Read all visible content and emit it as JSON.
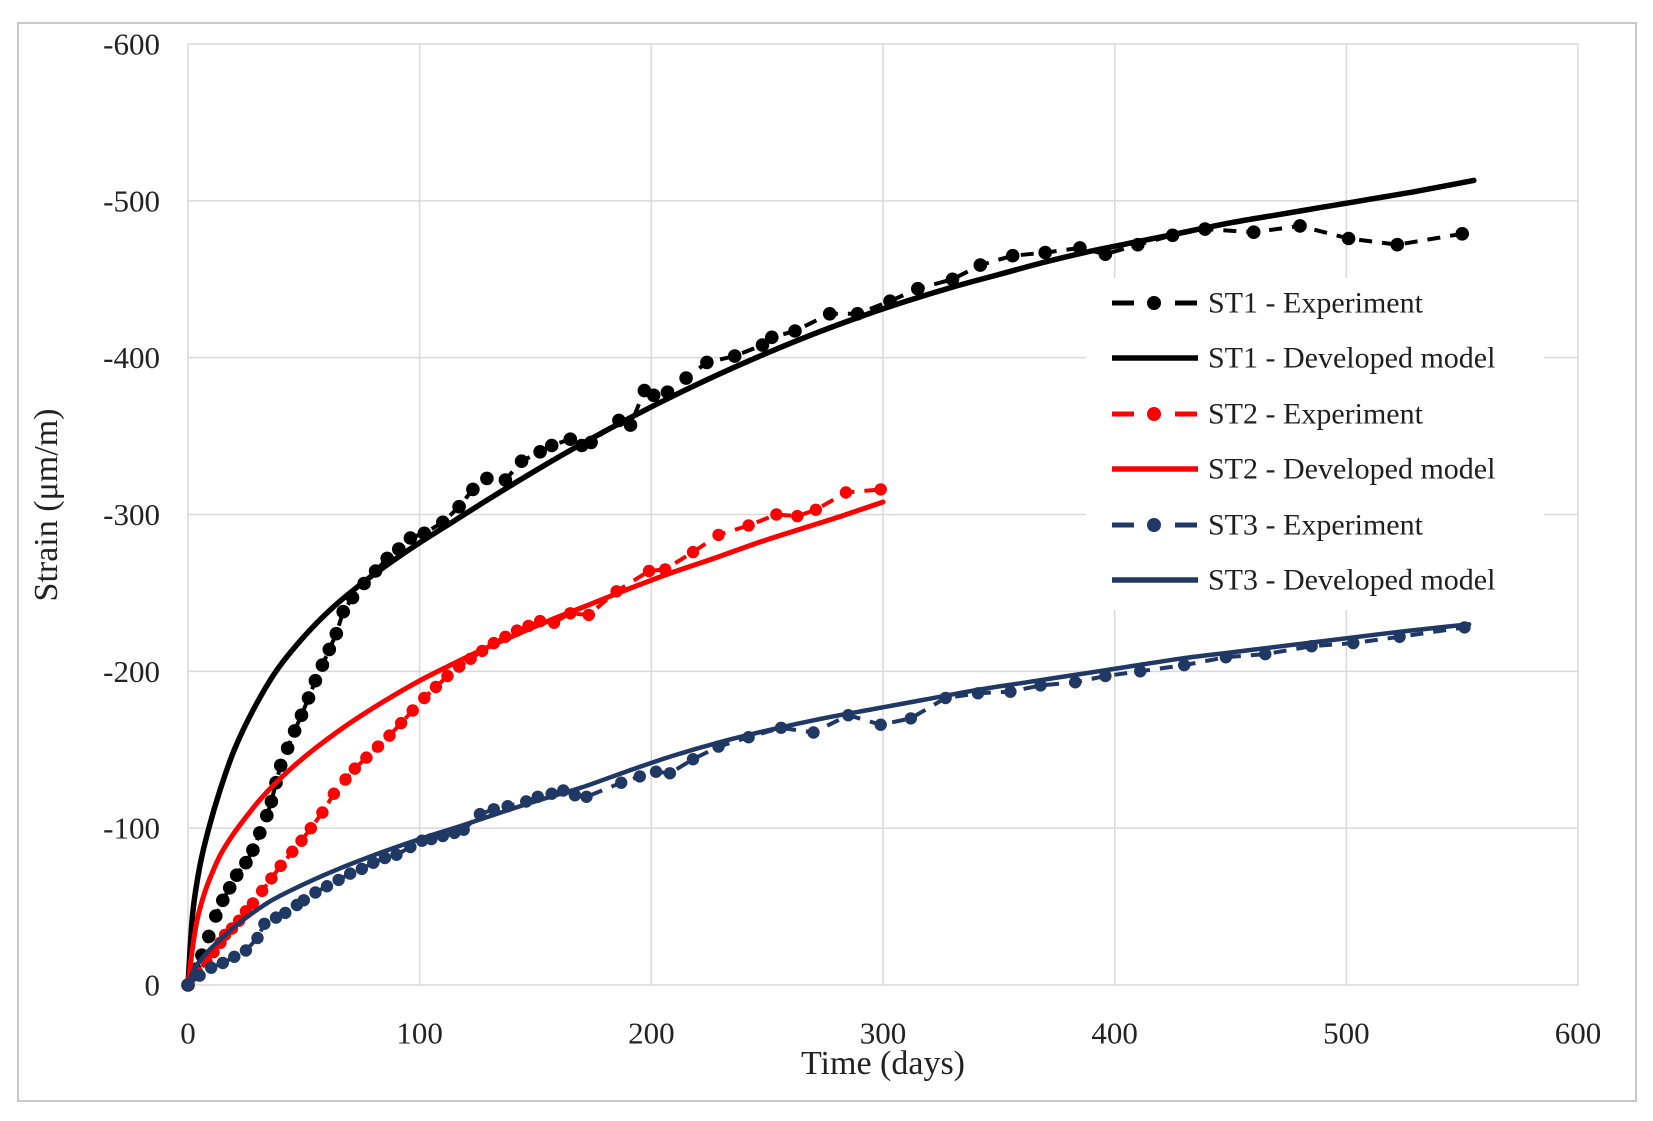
{
  "figure": {
    "background": "#ffffff",
    "border_color": "#c9c9c9"
  },
  "chart_data": {
    "type": "line",
    "title": "",
    "xlabel": "Time (days)",
    "ylabel": "Strain (μm/m)",
    "xlim": [
      0,
      600
    ],
    "ylim": [
      0,
      -600
    ],
    "x_ticks": [
      0,
      100,
      200,
      300,
      400,
      500,
      600
    ],
    "y_ticks": [
      0,
      -100,
      -200,
      -300,
      -400,
      -500,
      -600
    ],
    "grid": true,
    "grid_color": "#d9d9d9",
    "tick_color": "#222222",
    "legend_position": "inside-right",
    "series": [
      {
        "id": "st1-model",
        "name": "ST1 - Developed model",
        "kind": "model",
        "color": "#000000",
        "stroke_width": 5.5,
        "points": [
          [
            0,
            0
          ],
          [
            2,
            -45
          ],
          [
            5,
            -75
          ],
          [
            9,
            -100
          ],
          [
            14,
            -125
          ],
          [
            20,
            -150
          ],
          [
            28,
            -175
          ],
          [
            38,
            -200
          ],
          [
            50,
            -222
          ],
          [
            62,
            -240
          ],
          [
            75,
            -256
          ],
          [
            88,
            -270
          ],
          [
            100,
            -282
          ],
          [
            115,
            -296
          ],
          [
            130,
            -310
          ],
          [
            150,
            -328
          ],
          [
            170,
            -345
          ],
          [
            190,
            -361
          ],
          [
            210,
            -376
          ],
          [
            230,
            -390
          ],
          [
            250,
            -403
          ],
          [
            270,
            -415
          ],
          [
            290,
            -426
          ],
          [
            310,
            -436
          ],
          [
            330,
            -445
          ],
          [
            350,
            -453
          ],
          [
            370,
            -461
          ],
          [
            390,
            -468
          ],
          [
            410,
            -474
          ],
          [
            430,
            -480
          ],
          [
            450,
            -486
          ],
          [
            470,
            -491
          ],
          [
            490,
            -496
          ],
          [
            510,
            -501
          ],
          [
            530,
            -506
          ],
          [
            555,
            -513
          ]
        ]
      },
      {
        "id": "st1-exp",
        "name": "ST1 - Experiment",
        "kind": "experiment",
        "color": "#000000",
        "stroke_width": 4,
        "marker_radius": 6.8,
        "points": [
          [
            0,
            0
          ],
          [
            3,
            -10
          ],
          [
            6,
            -19
          ],
          [
            9,
            -31
          ],
          [
            12,
            -44
          ],
          [
            15,
            -54
          ],
          [
            18,
            -62
          ],
          [
            21,
            -70
          ],
          [
            25,
            -78
          ],
          [
            28,
            -86
          ],
          [
            31,
            -97
          ],
          [
            34,
            -108
          ],
          [
            36,
            -117
          ],
          [
            38,
            -129
          ],
          [
            40,
            -140
          ],
          [
            43,
            -151
          ],
          [
            46,
            -162
          ],
          [
            49,
            -172
          ],
          [
            52,
            -183
          ],
          [
            55,
            -194
          ],
          [
            58,
            -204
          ],
          [
            61,
            -214
          ],
          [
            64,
            -224
          ],
          [
            67,
            -238
          ],
          [
            71,
            -247
          ],
          [
            76,
            -256
          ],
          [
            81,
            -264
          ],
          [
            86,
            -272
          ],
          [
            91,
            -278
          ],
          [
            96,
            -285
          ],
          [
            102,
            -288
          ],
          [
            110,
            -295
          ],
          [
            117,
            -305
          ],
          [
            123,
            -316
          ],
          [
            129,
            -323
          ],
          [
            137,
            -322
          ],
          [
            144,
            -334
          ],
          [
            152,
            -340
          ],
          [
            157,
            -344
          ],
          [
            165,
            -348
          ],
          [
            170,
            -344
          ],
          [
            174,
            -346
          ],
          [
            186,
            -360
          ],
          [
            191,
            -357
          ],
          [
            197,
            -379
          ],
          [
            201,
            -376
          ],
          [
            207,
            -378
          ],
          [
            215,
            -387
          ],
          [
            224,
            -397
          ],
          [
            236,
            -401
          ],
          [
            248,
            -408
          ],
          [
            252,
            -413
          ],
          [
            262,
            -417
          ],
          [
            277,
            -428
          ],
          [
            289,
            -428
          ],
          [
            303,
            -436
          ],
          [
            315,
            -444
          ],
          [
            330,
            -450
          ],
          [
            342,
            -459
          ],
          [
            356,
            -465
          ],
          [
            370,
            -467
          ],
          [
            385,
            -470
          ],
          [
            396,
            -466
          ],
          [
            410,
            -472
          ],
          [
            425,
            -478
          ],
          [
            439,
            -482
          ],
          [
            460,
            -480
          ],
          [
            480,
            -484
          ],
          [
            501,
            -476
          ],
          [
            522,
            -472
          ],
          [
            550,
            -479
          ]
        ]
      },
      {
        "id": "st2-model",
        "name": "ST2 - Developed model",
        "kind": "model",
        "color": "#ff0000",
        "stroke_width": 5,
        "points": [
          [
            0,
            0
          ],
          [
            2,
            -24
          ],
          [
            4,
            -42
          ],
          [
            7,
            -58
          ],
          [
            10,
            -70
          ],
          [
            14,
            -83
          ],
          [
            19,
            -95
          ],
          [
            25,
            -107
          ],
          [
            31,
            -118
          ],
          [
            38,
            -129
          ],
          [
            46,
            -140
          ],
          [
            55,
            -151
          ],
          [
            65,
            -162
          ],
          [
            76,
            -173
          ],
          [
            87,
            -183
          ],
          [
            100,
            -194
          ],
          [
            112,
            -203
          ],
          [
            126,
            -213
          ],
          [
            141,
            -223
          ],
          [
            157,
            -233
          ],
          [
            174,
            -243
          ],
          [
            191,
            -253
          ],
          [
            209,
            -263
          ],
          [
            227,
            -272
          ],
          [
            246,
            -282
          ],
          [
            265,
            -291
          ],
          [
            282,
            -299
          ],
          [
            300,
            -308
          ]
        ]
      },
      {
        "id": "st2-exp",
        "name": "ST2 - Experiment",
        "kind": "experiment",
        "color": "#ff0000",
        "stroke_width": 4,
        "marker_radius": 6.2,
        "points": [
          [
            0,
            0
          ],
          [
            4,
            -8
          ],
          [
            8,
            -15
          ],
          [
            11,
            -21
          ],
          [
            14,
            -27
          ],
          [
            16,
            -32
          ],
          [
            19,
            -36
          ],
          [
            22,
            -41
          ],
          [
            25,
            -47
          ],
          [
            28,
            -52
          ],
          [
            32,
            -60
          ],
          [
            36,
            -68
          ],
          [
            40,
            -76
          ],
          [
            45,
            -85
          ],
          [
            49,
            -92
          ],
          [
            53,
            -100
          ],
          [
            58,
            -110
          ],
          [
            63,
            -122
          ],
          [
            68,
            -131
          ],
          [
            72,
            -138
          ],
          [
            77,
            -145
          ],
          [
            82,
            -152
          ],
          [
            87,
            -159
          ],
          [
            92,
            -167
          ],
          [
            97,
            -175
          ],
          [
            102,
            -183
          ],
          [
            107,
            -190
          ],
          [
            112,
            -197
          ],
          [
            117,
            -203
          ],
          [
            122,
            -208
          ],
          [
            127,
            -213
          ],
          [
            132,
            -218
          ],
          [
            137,
            -222
          ],
          [
            142,
            -226
          ],
          [
            147,
            -229
          ],
          [
            152,
            -232
          ],
          [
            158,
            -231
          ],
          [
            165,
            -237
          ],
          [
            173,
            -236
          ],
          [
            185,
            -251
          ],
          [
            199,
            -264
          ],
          [
            206,
            -265
          ],
          [
            218,
            -276
          ],
          [
            229,
            -287
          ],
          [
            242,
            -293
          ],
          [
            254,
            -300
          ],
          [
            263,
            -299
          ],
          [
            271,
            -303
          ],
          [
            284,
            -314
          ],
          [
            299,
            -316
          ]
        ]
      },
      {
        "id": "st3-model",
        "name": "ST3 - Developed model",
        "kind": "model",
        "color": "#1f3864",
        "stroke_width": 4.5,
        "points": [
          [
            0,
            0
          ],
          [
            2,
            -8
          ],
          [
            5,
            -15
          ],
          [
            9,
            -22
          ],
          [
            14,
            -29
          ],
          [
            20,
            -37
          ],
          [
            27,
            -45
          ],
          [
            35,
            -53
          ],
          [
            44,
            -60
          ],
          [
            54,
            -67
          ],
          [
            65,
            -74
          ],
          [
            77,
            -81
          ],
          [
            90,
            -88
          ],
          [
            104,
            -95
          ],
          [
            119,
            -102
          ],
          [
            135,
            -110
          ],
          [
            152,
            -118
          ],
          [
            170,
            -126
          ],
          [
            189,
            -136
          ],
          [
            209,
            -146
          ],
          [
            230,
            -155
          ],
          [
            252,
            -163
          ],
          [
            274,
            -170
          ],
          [
            296,
            -176
          ],
          [
            318,
            -182
          ],
          [
            340,
            -188
          ],
          [
            362,
            -193
          ],
          [
            384,
            -198
          ],
          [
            406,
            -203
          ],
          [
            428,
            -208
          ],
          [
            450,
            -212
          ],
          [
            472,
            -216
          ],
          [
            494,
            -220
          ],
          [
            516,
            -224
          ],
          [
            534,
            -227
          ],
          [
            553,
            -230
          ]
        ]
      },
      {
        "id": "st3-exp",
        "name": "ST3 - Experiment",
        "kind": "experiment",
        "color": "#1f3864",
        "stroke_width": 4,
        "marker_radius": 6.2,
        "points": [
          [
            0,
            0
          ],
          [
            5,
            -6
          ],
          [
            10,
            -11
          ],
          [
            15,
            -14
          ],
          [
            20,
            -18
          ],
          [
            25,
            -22
          ],
          [
            30,
            -30
          ],
          [
            33,
            -39
          ],
          [
            38,
            -43
          ],
          [
            42,
            -46
          ],
          [
            47,
            -51
          ],
          [
            50,
            -54
          ],
          [
            55,
            -59
          ],
          [
            60,
            -63
          ],
          [
            65,
            -67
          ],
          [
            70,
            -71
          ],
          [
            75,
            -74
          ],
          [
            80,
            -78
          ],
          [
            85,
            -81
          ],
          [
            90,
            -83
          ],
          [
            96,
            -88
          ],
          [
            101,
            -92
          ],
          [
            105,
            -93
          ],
          [
            110,
            -95
          ],
          [
            115,
            -97
          ],
          [
            119,
            -99
          ],
          [
            126,
            -109
          ],
          [
            132,
            -112
          ],
          [
            138,
            -114
          ],
          [
            146,
            -117
          ],
          [
            151,
            -120
          ],
          [
            157,
            -122
          ],
          [
            162,
            -124
          ],
          [
            167,
            -121
          ],
          [
            172,
            -120
          ],
          [
            187,
            -129
          ],
          [
            195,
            -133
          ],
          [
            202,
            -136
          ],
          [
            208,
            -135
          ],
          [
            218,
            -144
          ],
          [
            229,
            -152
          ],
          [
            242,
            -158
          ],
          [
            256,
            -164
          ],
          [
            270,
            -161
          ],
          [
            285,
            -172
          ],
          [
            299,
            -166
          ],
          [
            312,
            -170
          ],
          [
            327,
            -183
          ],
          [
            341,
            -186
          ],
          [
            355,
            -187
          ],
          [
            368,
            -191
          ],
          [
            383,
            -193
          ],
          [
            396,
            -197
          ],
          [
            411,
            -200
          ],
          [
            430,
            -204
          ],
          [
            448,
            -209
          ],
          [
            465,
            -211
          ],
          [
            485,
            -216
          ],
          [
            503,
            -218
          ],
          [
            523,
            -222
          ],
          [
            551,
            -228
          ]
        ]
      }
    ]
  },
  "legend": {
    "entries": [
      {
        "label": "ST1 - Experiment",
        "style": "experiment",
        "color": "#000000"
      },
      {
        "label": "ST1 - Developed model",
        "style": "model",
        "color": "#000000"
      },
      {
        "label": "ST2 - Experiment",
        "style": "experiment",
        "color": "#ff0000"
      },
      {
        "label": "ST2 - Developed model",
        "style": "model",
        "color": "#ff0000"
      },
      {
        "label": "ST3 - Experiment",
        "style": "experiment",
        "color": "#1f3864"
      },
      {
        "label": "ST3 - Developed model",
        "style": "model",
        "color": "#1f3864"
      }
    ]
  }
}
